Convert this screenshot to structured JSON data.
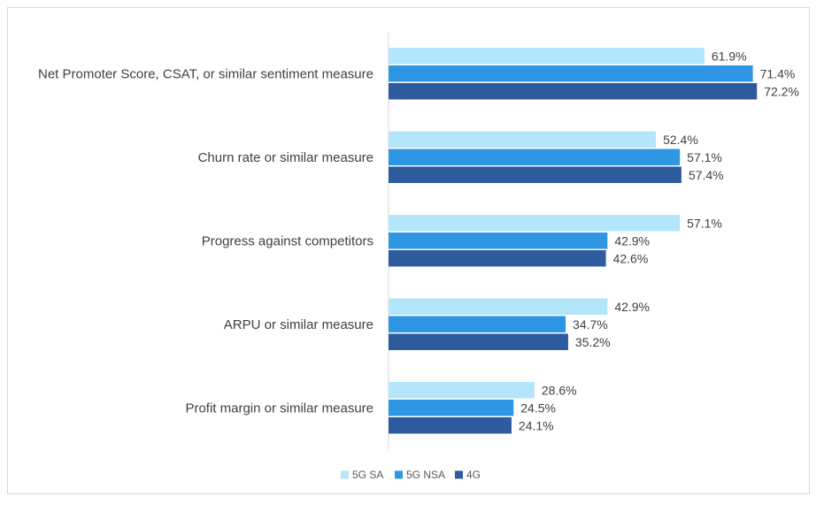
{
  "chart_data": {
    "type": "bar",
    "orientation": "horizontal",
    "categories": [
      "Net Promoter Score, CSAT, or similar sentiment measure",
      "Churn rate or similar measure",
      "Progress against competitors",
      "ARPU or similar measure",
      "Profit margin or similar measure"
    ],
    "series": [
      {
        "name": "5G SA",
        "color": "#b4e6fb",
        "values": [
          61.9,
          52.4,
          57.1,
          42.9,
          28.6
        ],
        "labels": [
          "61.9%",
          "52.4%",
          "57.1%",
          "42.9%",
          "28.6%"
        ]
      },
      {
        "name": "5G NSA",
        "color": "#2e96e2",
        "values": [
          71.4,
          57.1,
          42.9,
          34.7,
          24.5
        ],
        "labels": [
          "71.4%",
          "57.1%",
          "42.9%",
          "34.7%",
          "24.5%"
        ]
      },
      {
        "name": "4G",
        "color": "#2e5a9e",
        "values": [
          72.2,
          57.4,
          42.6,
          35.2,
          24.1
        ],
        "labels": [
          "72.2%",
          "57.4%",
          "42.6%",
          "35.2%",
          "24.1%"
        ]
      }
    ],
    "xlim": [
      0,
      100
    ],
    "value_unit": "%",
    "grid": false,
    "legend_position": "bottom",
    "title": "",
    "xlabel": "",
    "ylabel": ""
  }
}
